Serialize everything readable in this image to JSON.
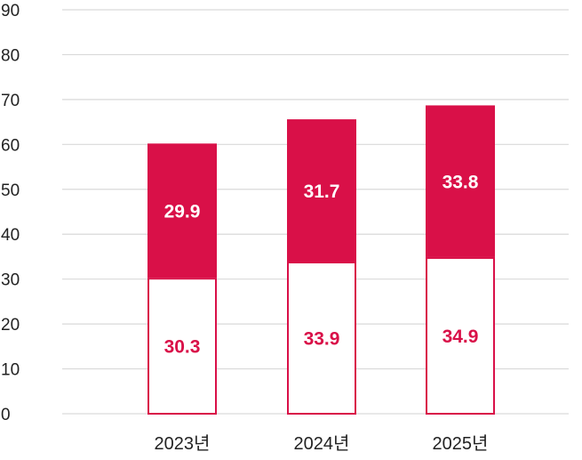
{
  "chart_data": {
    "type": "bar",
    "stacked": true,
    "title": "",
    "xlabel": "",
    "ylabel": "",
    "ylim": [
      0,
      90
    ],
    "yticks": [
      0,
      10,
      20,
      30,
      40,
      50,
      60,
      70,
      80,
      90
    ],
    "grid": true,
    "legend": "none",
    "categories": [
      "2023년",
      "2024년",
      "2025년"
    ],
    "series": [
      {
        "values": [
          30.3,
          33.9,
          34.9
        ],
        "style": "outlined"
      },
      {
        "values": [
          29.9,
          31.7,
          33.8
        ],
        "style": "filled"
      }
    ],
    "colors": {
      "accent": "#d91048",
      "grid": "#d9d9d9",
      "text": "#222222",
      "outlined_fill": "#ffffff"
    }
  }
}
